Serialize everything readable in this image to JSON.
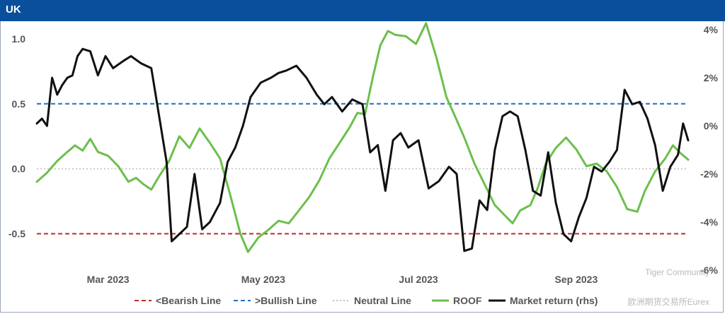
{
  "header": {
    "title": "UK"
  },
  "watermark": {
    "line1": "Tiger Community",
    "line2": "欧洲期货交易所Eurex"
  },
  "chart_data": {
    "type": "line",
    "x_ticks": [
      "Mar 2023",
      "May 2023",
      "Jul 2023",
      "Sep 2023"
    ],
    "x_range": [
      "2023-02-01",
      "2023-10-15"
    ],
    "y_left": {
      "ticks": [
        "1.0",
        "0.5",
        "0.0",
        "-0.5"
      ],
      "range": [
        -0.78,
        1.07
      ]
    },
    "y_right": {
      "ticks": [
        "4%",
        "2%",
        "0%",
        "-2%",
        "-4%",
        "-6%"
      ],
      "range": [
        -6.0,
        4.0
      ]
    },
    "reference_lines": [
      {
        "name": "<Bearish Line",
        "value": -0.5,
        "color": "#c0282d",
        "style": "dashed"
      },
      {
        "name": ">Bullish Line",
        "value": 0.5,
        "color": "#1f6fc5",
        "style": "dashed"
      },
      {
        "name": "Neutral Line",
        "value": 0.0,
        "color": "#bfbfbf",
        "style": "dotted"
      }
    ],
    "series": [
      {
        "name": "ROOF",
        "axis": "left",
        "color": "#6cbf4b",
        "points": [
          [
            "2023-02-01",
            -0.1
          ],
          [
            "2023-02-05",
            -0.03
          ],
          [
            "2023-02-09",
            0.06
          ],
          [
            "2023-02-13",
            0.13
          ],
          [
            "2023-02-16",
            0.18
          ],
          [
            "2023-02-19",
            0.14
          ],
          [
            "2023-02-22",
            0.23
          ],
          [
            "2023-02-25",
            0.13
          ],
          [
            "2023-03-01",
            0.1
          ],
          [
            "2023-03-05",
            0.02
          ],
          [
            "2023-03-09",
            -0.1
          ],
          [
            "2023-03-12",
            -0.07
          ],
          [
            "2023-03-15",
            -0.12
          ],
          [
            "2023-03-18",
            -0.16
          ],
          [
            "2023-03-21",
            -0.06
          ],
          [
            "2023-03-25",
            0.06
          ],
          [
            "2023-03-29",
            0.25
          ],
          [
            "2023-04-02",
            0.16
          ],
          [
            "2023-04-06",
            0.31
          ],
          [
            "2023-04-10",
            0.2
          ],
          [
            "2023-04-14",
            0.08
          ],
          [
            "2023-04-18",
            -0.2
          ],
          [
            "2023-04-22",
            -0.5
          ],
          [
            "2023-04-25",
            -0.64
          ],
          [
            "2023-04-29",
            -0.53
          ],
          [
            "2023-05-03",
            -0.47
          ],
          [
            "2023-05-07",
            -0.4
          ],
          [
            "2023-05-11",
            -0.42
          ],
          [
            "2023-05-15",
            -0.32
          ],
          [
            "2023-05-19",
            -0.22
          ],
          [
            "2023-05-23",
            -0.09
          ],
          [
            "2023-05-27",
            0.08
          ],
          [
            "2023-05-31",
            0.2
          ],
          [
            "2023-06-04",
            0.32
          ],
          [
            "2023-06-07",
            0.43
          ],
          [
            "2023-06-10",
            0.42
          ],
          [
            "2023-06-13",
            0.7
          ],
          [
            "2023-06-16",
            0.95
          ],
          [
            "2023-06-19",
            1.06
          ],
          [
            "2023-06-22",
            1.03
          ],
          [
            "2023-06-26",
            1.02
          ],
          [
            "2023-06-30",
            0.96
          ],
          [
            "2023-07-04",
            1.12
          ],
          [
            "2023-07-08",
            0.86
          ],
          [
            "2023-07-12",
            0.55
          ],
          [
            "2023-07-15",
            0.42
          ],
          [
            "2023-07-19",
            0.24
          ],
          [
            "2023-07-23",
            0.04
          ],
          [
            "2023-07-27",
            -0.12
          ],
          [
            "2023-07-31",
            -0.28
          ],
          [
            "2023-08-04",
            -0.36
          ],
          [
            "2023-08-07",
            -0.42
          ],
          [
            "2023-08-10",
            -0.32
          ],
          [
            "2023-08-14",
            -0.28
          ],
          [
            "2023-08-17",
            -0.14
          ],
          [
            "2023-08-20",
            0.04
          ],
          [
            "2023-08-24",
            0.16
          ],
          [
            "2023-08-28",
            0.24
          ],
          [
            "2023-09-01",
            0.15
          ],
          [
            "2023-09-05",
            0.02
          ],
          [
            "2023-09-09",
            0.04
          ],
          [
            "2023-09-13",
            -0.02
          ],
          [
            "2023-09-17",
            -0.14
          ],
          [
            "2023-09-21",
            -0.31
          ],
          [
            "2023-09-25",
            -0.33
          ],
          [
            "2023-09-28",
            -0.17
          ],
          [
            "2023-10-02",
            -0.02
          ],
          [
            "2023-10-06",
            0.08
          ],
          [
            "2023-10-09",
            0.18
          ],
          [
            "2023-10-12",
            0.12
          ],
          [
            "2023-10-15",
            0.07
          ]
        ]
      },
      {
        "name": "Market return (rhs)",
        "axis": "right",
        "color": "#111111",
        "points": [
          [
            "2023-02-01",
            0.1
          ],
          [
            "2023-02-03",
            0.3
          ],
          [
            "2023-02-05",
            0.0
          ],
          [
            "2023-02-07",
            2.0
          ],
          [
            "2023-02-09",
            1.3
          ],
          [
            "2023-02-11",
            1.7
          ],
          [
            "2023-02-13",
            2.0
          ],
          [
            "2023-02-15",
            2.1
          ],
          [
            "2023-02-17",
            2.9
          ],
          [
            "2023-02-19",
            3.2
          ],
          [
            "2023-02-22",
            3.1
          ],
          [
            "2023-02-25",
            2.1
          ],
          [
            "2023-02-28",
            2.9
          ],
          [
            "2023-03-03",
            2.4
          ],
          [
            "2023-03-07",
            2.7
          ],
          [
            "2023-03-10",
            2.9
          ],
          [
            "2023-03-14",
            2.6
          ],
          [
            "2023-03-18",
            2.4
          ],
          [
            "2023-03-22",
            -0.2
          ],
          [
            "2023-03-24",
            -1.5
          ],
          [
            "2023-03-26",
            -4.8
          ],
          [
            "2023-03-28",
            -4.6
          ],
          [
            "2023-04-01",
            -4.2
          ],
          [
            "2023-04-04",
            -2.0
          ],
          [
            "2023-04-07",
            -4.3
          ],
          [
            "2023-04-10",
            -4.0
          ],
          [
            "2023-04-14",
            -3.2
          ],
          [
            "2023-04-17",
            -1.5
          ],
          [
            "2023-04-20",
            -0.9
          ],
          [
            "2023-04-23",
            0.0
          ],
          [
            "2023-04-26",
            1.2
          ],
          [
            "2023-04-30",
            1.8
          ],
          [
            "2023-05-04",
            2.0
          ],
          [
            "2023-05-07",
            2.2
          ],
          [
            "2023-05-10",
            2.3
          ],
          [
            "2023-05-14",
            2.5
          ],
          [
            "2023-05-18",
            2.0
          ],
          [
            "2023-05-22",
            1.3
          ],
          [
            "2023-05-25",
            0.9
          ],
          [
            "2023-05-28",
            1.2
          ],
          [
            "2023-06-01",
            0.6
          ],
          [
            "2023-06-05",
            1.1
          ],
          [
            "2023-06-09",
            0.9
          ],
          [
            "2023-06-12",
            -1.1
          ],
          [
            "2023-06-15",
            -0.8
          ],
          [
            "2023-06-18",
            -2.7
          ],
          [
            "2023-06-21",
            -0.6
          ],
          [
            "2023-06-24",
            -0.3
          ],
          [
            "2023-06-27",
            -0.9
          ],
          [
            "2023-07-01",
            -0.6
          ],
          [
            "2023-07-05",
            -2.6
          ],
          [
            "2023-07-09",
            -2.3
          ],
          [
            "2023-07-13",
            -1.7
          ],
          [
            "2023-07-16",
            -2.0
          ],
          [
            "2023-07-19",
            -5.2
          ],
          [
            "2023-07-22",
            -5.1
          ],
          [
            "2023-07-25",
            -3.1
          ],
          [
            "2023-07-28",
            -3.5
          ],
          [
            "2023-07-31",
            -1.0
          ],
          [
            "2023-08-03",
            0.4
          ],
          [
            "2023-08-06",
            0.6
          ],
          [
            "2023-08-09",
            0.4
          ],
          [
            "2023-08-12",
            -1.0
          ],
          [
            "2023-08-15",
            -2.7
          ],
          [
            "2023-08-18",
            -2.9
          ],
          [
            "2023-08-21",
            -1.1
          ],
          [
            "2023-08-24",
            -3.2
          ],
          [
            "2023-08-27",
            -4.5
          ],
          [
            "2023-08-30",
            -4.8
          ],
          [
            "2023-09-02",
            -3.8
          ],
          [
            "2023-09-05",
            -3.0
          ],
          [
            "2023-09-08",
            -1.7
          ],
          [
            "2023-09-11",
            -1.9
          ],
          [
            "2023-09-14",
            -1.5
          ],
          [
            "2023-09-17",
            -1.0
          ],
          [
            "2023-09-20",
            1.5
          ],
          [
            "2023-09-23",
            0.9
          ],
          [
            "2023-09-26",
            1.0
          ],
          [
            "2023-09-29",
            0.3
          ],
          [
            "2023-10-02",
            -0.8
          ],
          [
            "2023-10-05",
            -2.7
          ],
          [
            "2023-10-08",
            -1.7
          ],
          [
            "2023-10-11",
            -1.2
          ],
          [
            "2023-10-13",
            0.1
          ],
          [
            "2023-10-15",
            -0.6
          ]
        ]
      }
    ],
    "legend": {
      "placement": "bottom",
      "entries": [
        "<Bearish Line",
        ">Bullish Line",
        "Neutral Line",
        "ROOF",
        "Market return (rhs)"
      ]
    },
    "grid": false
  }
}
